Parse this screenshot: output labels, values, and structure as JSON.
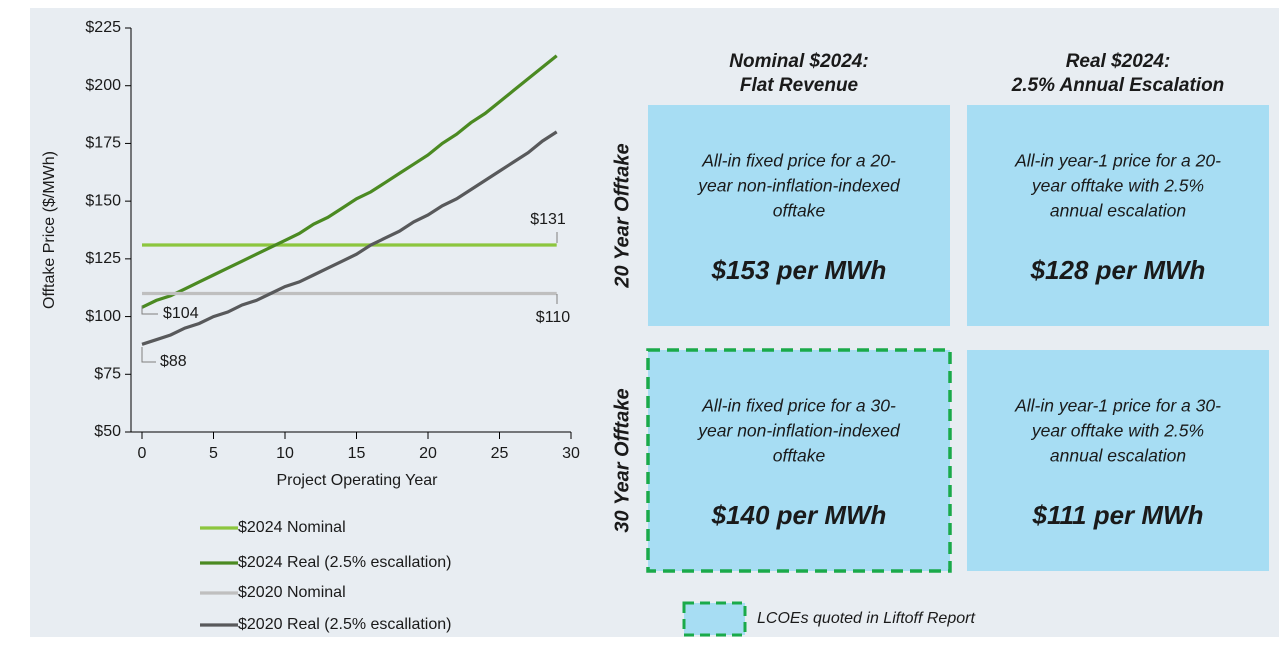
{
  "chart_data": {
    "type": "line",
    "y_label": "Offtake Price ($/MWh)",
    "x_label": "Project Operating Year",
    "x": [
      0,
      1,
      2,
      3,
      4,
      5,
      6,
      7,
      8,
      9,
      10,
      11,
      12,
      13,
      14,
      15,
      16,
      17,
      18,
      19,
      20,
      21,
      22,
      23,
      24,
      25,
      26,
      27,
      28,
      29
    ],
    "series": [
      {
        "name": "$2024 Nominal",
        "color": "#8cc63e",
        "values": [
          131,
          131,
          131,
          131,
          131,
          131,
          131,
          131,
          131,
          131,
          131,
          131,
          131,
          131,
          131,
          131,
          131,
          131,
          131,
          131,
          131,
          131,
          131,
          131,
          131,
          131,
          131,
          131,
          131,
          131
        ]
      },
      {
        "name": "$2024 Real (2.5% escallation)",
        "color": "#4b8a22",
        "values": [
          104,
          107,
          109,
          112,
          115,
          118,
          121,
          124,
          127,
          130,
          133,
          136,
          140,
          143,
          147,
          151,
          154,
          158,
          162,
          166,
          170,
          175,
          179,
          184,
          188,
          193,
          198,
          203,
          208,
          213
        ]
      },
      {
        "name": "$2020 Nominal",
        "color": "#bfbfbf",
        "values": [
          110,
          110,
          110,
          110,
          110,
          110,
          110,
          110,
          110,
          110,
          110,
          110,
          110,
          110,
          110,
          110,
          110,
          110,
          110,
          110,
          110,
          110,
          110,
          110,
          110,
          110,
          110,
          110,
          110,
          110
        ]
      },
      {
        "name": "$2020 Real (2.5% escallation)",
        "color": "#58595b",
        "values": [
          88,
          90,
          92,
          95,
          97,
          100,
          102,
          105,
          107,
          110,
          113,
          115,
          118,
          121,
          124,
          127,
          131,
          134,
          137,
          141,
          144,
          148,
          151,
          155,
          159,
          163,
          167,
          171,
          176,
          180
        ]
      }
    ],
    "annotations": [
      "$131",
      "$104",
      "$110",
      "$88"
    ],
    "xlim": [
      0,
      30
    ],
    "xticks": [
      0,
      5,
      10,
      15,
      20,
      25,
      30
    ],
    "ylim": [
      50,
      225
    ],
    "yticks": [
      {
        "value": 50,
        "label": "$50"
      },
      {
        "value": 75,
        "label": "$75"
      },
      {
        "value": 100,
        "label": "$100"
      },
      {
        "value": 125,
        "label": "$125"
      },
      {
        "value": 150,
        "label": "$150"
      },
      {
        "value": 175,
        "label": "$175"
      },
      {
        "value": 200,
        "label": "$200"
      },
      {
        "value": 225,
        "label": "$225"
      }
    ],
    "grid": false,
    "legend": "bottom"
  },
  "matrix": {
    "columns": [
      [
        "Nominal $2024:",
        "Flat Revenue"
      ],
      [
        "Real $2024:",
        "2.5% Annual Escalation"
      ]
    ],
    "rows": [
      "20 Year Offtake",
      "30 Year Offtake"
    ],
    "cells": [
      [
        {
          "description": [
            "All-in fixed price for a 20-",
            "year non-inflation-indexed",
            "offtake"
          ],
          "price": "$153 per MWh",
          "highlighted": false
        },
        {
          "description": [
            "All-in year-1 price for a 20-",
            "year offtake with 2.5%",
            "annual escalation"
          ],
          "price": "$128 per MWh",
          "highlighted": false
        }
      ],
      [
        {
          "description": [
            "All-in fixed price for a 30-",
            "year non-inflation-indexed",
            "offtake"
          ],
          "price": "$140 per MWh",
          "highlighted": true
        },
        {
          "description": [
            "All-in year-1 price for a 30-",
            "year offtake with 2.5%",
            "annual escalation"
          ],
          "price": "$111 per MWh",
          "highlighted": false
        }
      ]
    ],
    "legend": "LCOEs quoted in Liftoff Report"
  }
}
